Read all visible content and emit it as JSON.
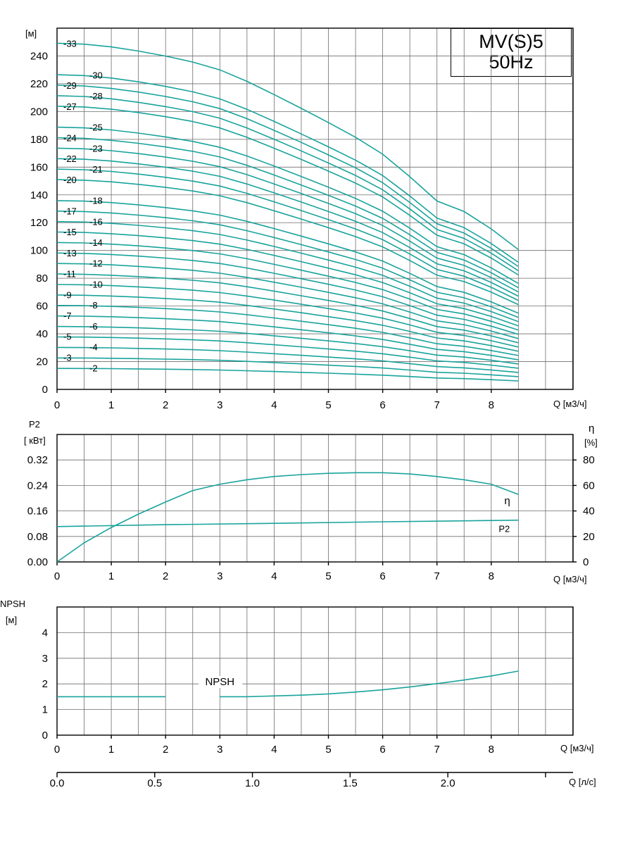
{
  "title_box": {
    "line1": "MV(S)5",
    "line2": "50Hz"
  },
  "colors": {
    "curve": "#19a39c",
    "grid": "#6e6e6e",
    "axis": "#000000"
  },
  "chart_data": [
    {
      "id": "head",
      "type": "line",
      "ylabel": "[м]",
      "xlabel": "Q [м3/ч]",
      "x_ticks": [
        0,
        1,
        2,
        3,
        4,
        5,
        6,
        7,
        8
      ],
      "y_ticks": [
        0,
        20,
        40,
        60,
        80,
        100,
        120,
        140,
        160,
        180,
        200,
        220,
        240
      ],
      "xlim": [
        0,
        9.5
      ],
      "ylim": [
        0,
        260
      ],
      "grid": true,
      "x": [
        0,
        0.5,
        1,
        1.5,
        2,
        2.5,
        3,
        3.5,
        4,
        4.5,
        5,
        5.5,
        6,
        6.5,
        7,
        7.5,
        8,
        8.5
      ],
      "base_per_stage": [
        7.55,
        7.53,
        7.47,
        7.38,
        7.27,
        7.14,
        6.97,
        6.72,
        6.43,
        6.13,
        5.82,
        5.5,
        5.13,
        4.64,
        4.11,
        3.88,
        3.5,
        3.05
      ],
      "series": [
        {
          "name": "-2",
          "stages": 2
        },
        {
          "name": "-3",
          "stages": 3
        },
        {
          "name": "-4",
          "stages": 4
        },
        {
          "name": "-5",
          "stages": 5
        },
        {
          "name": "-6",
          "stages": 6
        },
        {
          "name": "-7",
          "stages": 7
        },
        {
          "name": "-8",
          "stages": 8
        },
        {
          "name": "-9",
          "stages": 9
        },
        {
          "name": "-10",
          "stages": 10
        },
        {
          "name": "-11",
          "stages": 11
        },
        {
          "name": "-12",
          "stages": 12
        },
        {
          "name": "-13",
          "stages": 13
        },
        {
          "name": "-14",
          "stages": 14
        },
        {
          "name": "-15",
          "stages": 15
        },
        {
          "name": "-16",
          "stages": 16
        },
        {
          "name": "-17",
          "stages": 17
        },
        {
          "name": "-18",
          "stages": 18
        },
        {
          "name": "-20",
          "stages": 20
        },
        {
          "name": "-21",
          "stages": 21
        },
        {
          "name": "-22",
          "stages": 22
        },
        {
          "name": "-23",
          "stages": 23
        },
        {
          "name": "-24",
          "stages": 24
        },
        {
          "name": "-25",
          "stages": 25
        },
        {
          "name": "-27",
          "stages": 27
        },
        {
          "name": "-28",
          "stages": 28
        },
        {
          "name": "-29",
          "stages": 29
        },
        {
          "name": "-30",
          "stages": 30
        },
        {
          "name": "-33",
          "stages": 33
        }
      ]
    },
    {
      "id": "power",
      "type": "line",
      "ylabel": "P2",
      "ylabel_unit": "[ кВт]",
      "y2label": "η",
      "y2label_unit": "[%]",
      "xlabel": "Q [м3/ч]",
      "x_ticks": [
        0,
        1,
        2,
        3,
        4,
        5,
        6,
        7,
        8
      ],
      "y_ticks": [
        "0.00",
        "0.08",
        "0.16",
        "0.24",
        "0.32"
      ],
      "y2_ticks": [
        0,
        20,
        40,
        60,
        80
      ],
      "xlim": [
        0,
        9.5
      ],
      "ylim": [
        0,
        0.4
      ],
      "y2lim": [
        0,
        100
      ],
      "grid": true,
      "series": [
        {
          "name": "η",
          "axis": "right",
          "x": [
            0,
            0.5,
            1,
            1.5,
            2,
            2.5,
            3,
            3.5,
            4,
            4.5,
            5,
            5.5,
            6,
            6.5,
            7,
            7.5,
            8,
            8.5
          ],
          "values": [
            0,
            15,
            27,
            37.5,
            47,
            56,
            61,
            64.5,
            67,
            68.5,
            69.5,
            70,
            70,
            69,
            67,
            64.5,
            61,
            53
          ]
        },
        {
          "name": "P2",
          "axis": "left",
          "x": [
            0,
            2,
            4,
            6,
            8.5
          ],
          "values": [
            0.111,
            0.117,
            0.121,
            0.126,
            0.131
          ]
        }
      ]
    },
    {
      "id": "npsh",
      "type": "line",
      "ylabel": "NPSH",
      "ylabel_unit": "[м]",
      "xlabel": "Q [м3/ч]",
      "x_ticks": [
        0,
        1,
        2,
        3,
        4,
        5,
        6,
        7,
        8
      ],
      "y_ticks": [
        0,
        1,
        2,
        3,
        4
      ],
      "xlim": [
        0,
        9.5
      ],
      "ylim": [
        0,
        5
      ],
      "grid": true,
      "series": [
        {
          "name": "NPSH",
          "x": [
            0,
            1,
            2,
            3,
            3.5,
            4,
            4.5,
            5,
            5.5,
            6,
            6.5,
            7,
            7.5,
            8,
            8.5
          ],
          "values": [
            1.5,
            1.5,
            1.5,
            1.5,
            1.5,
            1.53,
            1.56,
            1.61,
            1.68,
            1.77,
            1.88,
            2.01,
            2.15,
            2.31,
            2.5
          ]
        }
      ]
    },
    {
      "id": "flow_ls",
      "type": "axis",
      "xlabel": "Q [л/с]",
      "x_ticks": [
        "0.0",
        "0.5",
        "1.0",
        "1.5",
        "2.0"
      ],
      "x_tick_values": [
        0,
        0.5,
        1.0,
        1.5,
        2.0
      ],
      "m3h_per_ls": 3.6
    }
  ]
}
